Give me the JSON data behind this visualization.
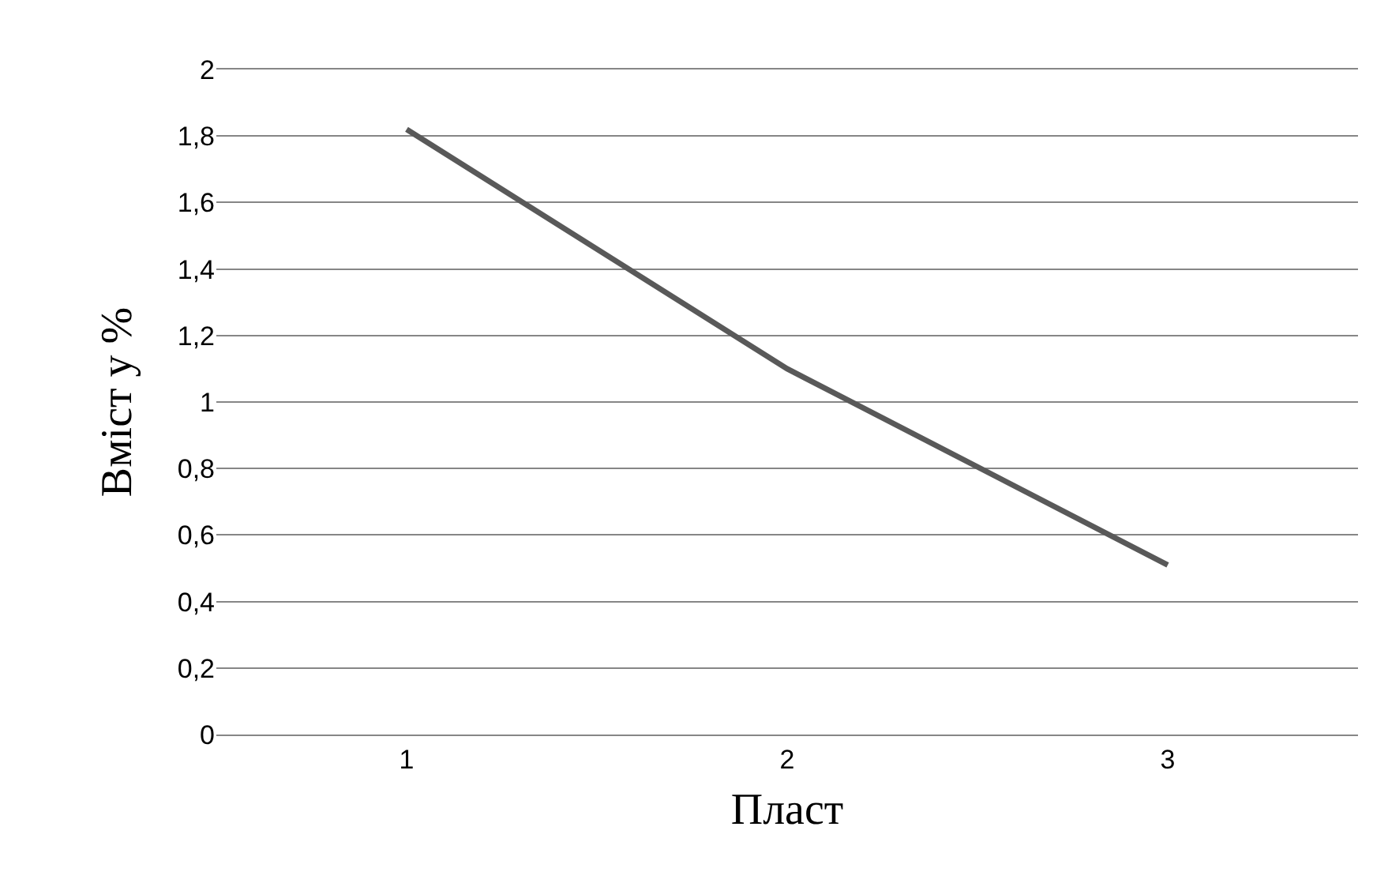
{
  "chart_data": {
    "type": "line",
    "xlabel": "Пласт",
    "ylabel": "Вміст у %",
    "categories": [
      "1",
      "2",
      "3"
    ],
    "series": [
      {
        "color": "#595959",
        "values": [
          1.82,
          1.1,
          0.51
        ]
      }
    ],
    "ylim": [
      0,
      2
    ],
    "yticks": [
      0,
      {
        "value": 0.2,
        "label": "0,2"
      },
      {
        "value": 0.4,
        "label": "0,4"
      },
      {
        "value": 0.6,
        "label": "0,6"
      },
      {
        "value": 0.8,
        "label": "0,8"
      },
      1,
      {
        "value": 1.2,
        "label": "1,2"
      },
      {
        "value": 1.4,
        "label": "1,4"
      },
      {
        "value": 1.6,
        "label": "1,6"
      },
      {
        "value": 1.8,
        "label": "1,8"
      },
      2
    ],
    "grid": "y",
    "marker": "none",
    "line_style": "solid"
  }
}
